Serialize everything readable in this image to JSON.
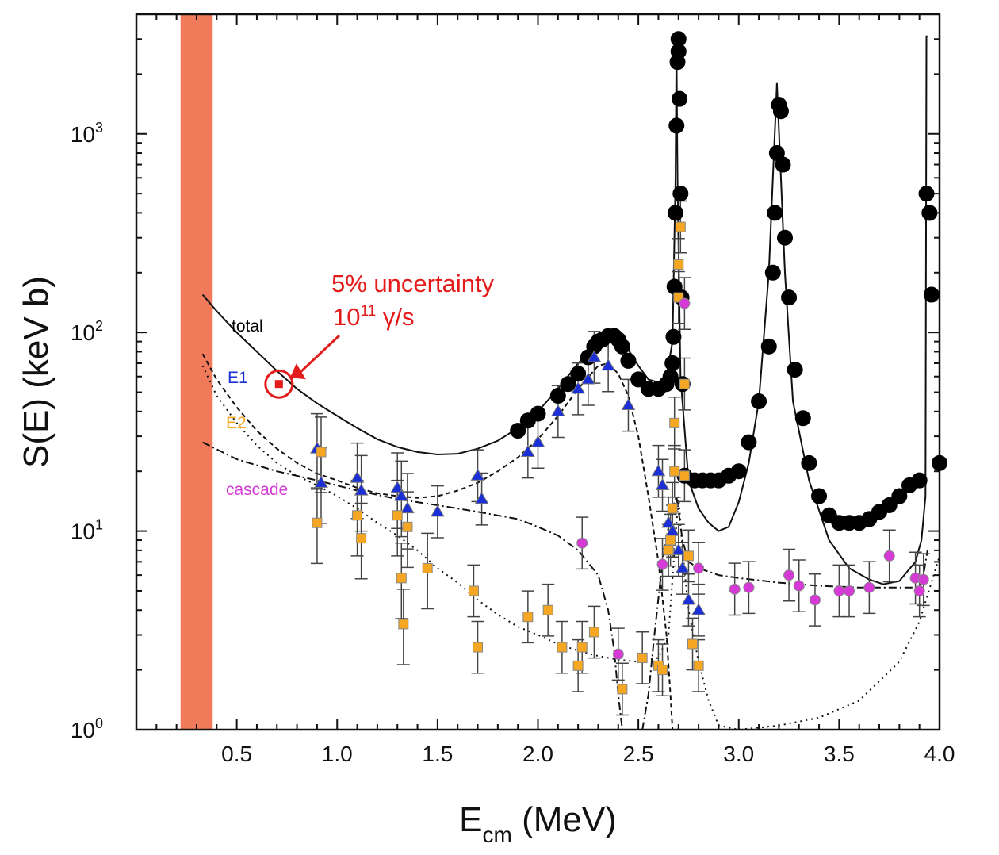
{
  "chart_data": {
    "type": "scatter",
    "title": "",
    "xlabel": "E",
    "xlabel_sub": "cm",
    "xlabel_unit": "(MeV)",
    "ylabel": "S(E) (keV b)",
    "x_range": [
      0.0,
      4.0
    ],
    "y_range_log": [
      1,
      4000
    ],
    "x_ticks": [
      "0.5",
      "1.0",
      "1.5",
      "2.0",
      "2.5",
      "3.0",
      "3.5",
      "4.0"
    ],
    "x_tick_values": [
      0.5,
      1.0,
      1.5,
      2.0,
      2.5,
      3.0,
      3.5,
      4.0
    ],
    "y_ticks": [
      {
        "base": "10",
        "exp": "0",
        "value": 1
      },
      {
        "base": "10",
        "exp": "1",
        "value": 10
      },
      {
        "base": "10",
        "exp": "2",
        "value": 100
      },
      {
        "base": "10",
        "exp": "3",
        "value": 1000
      }
    ],
    "shaded_band": {
      "x_from": 0.22,
      "x_to": 0.38,
      "color": "#f07a5a"
    },
    "colors": {
      "total": "#000000",
      "E1": "#1a2fd6",
      "E2": "#f5a623",
      "cascade": "#d63ad6",
      "annotation": "#e31b1b"
    },
    "curve_labels": [
      {
        "name": "total",
        "text": "total",
        "color": "#000000"
      },
      {
        "name": "E1",
        "text": "E1",
        "color": "#1a2fd6"
      },
      {
        "name": "E2",
        "text": "E2",
        "color": "#f5a623"
      },
      {
        "name": "cascade",
        "text": "cascade",
        "color": "#d63ad6"
      }
    ],
    "annotation": {
      "line1": "5% uncertainty",
      "line2_base": "10",
      "line2_exp": "11",
      "line2_rest": " γ/s",
      "point": {
        "x": 0.71,
        "y": 55
      }
    },
    "curves": {
      "total": [
        [
          0.33,
          155
        ],
        [
          0.4,
          128
        ],
        [
          0.5,
          100
        ],
        [
          0.6,
          80
        ],
        [
          0.7,
          64
        ],
        [
          0.8,
          52
        ],
        [
          0.9,
          44
        ],
        [
          1.0,
          38
        ],
        [
          1.1,
          33
        ],
        [
          1.2,
          29
        ],
        [
          1.3,
          26.5
        ],
        [
          1.4,
          25
        ],
        [
          1.5,
          24.3
        ],
        [
          1.6,
          24.5
        ],
        [
          1.7,
          26
        ],
        [
          1.8,
          28.5
        ],
        [
          1.9,
          33
        ],
        [
          2.0,
          40
        ],
        [
          2.1,
          52
        ],
        [
          2.2,
          70
        ],
        [
          2.3,
          90
        ],
        [
          2.35,
          95
        ],
        [
          2.4,
          92
        ],
        [
          2.45,
          82
        ],
        [
          2.5,
          68
        ],
        [
          2.55,
          58
        ],
        [
          2.6,
          56
        ],
        [
          2.64,
          60
        ],
        [
          2.67,
          90
        ],
        [
          2.685,
          600
        ],
        [
          2.69,
          2900
        ],
        [
          2.695,
          600
        ],
        [
          2.71,
          60
        ],
        [
          2.75,
          18
        ],
        [
          2.8,
          13
        ],
        [
          2.85,
          11
        ],
        [
          2.9,
          10
        ],
        [
          2.95,
          10.5
        ],
        [
          3.0,
          14
        ],
        [
          3.05,
          22
        ],
        [
          3.1,
          45
        ],
        [
          3.15,
          200
        ],
        [
          3.19,
          1800
        ],
        [
          3.23,
          200
        ],
        [
          3.27,
          45
        ],
        [
          3.35,
          18
        ],
        [
          3.45,
          9
        ],
        [
          3.55,
          6.5
        ],
        [
          3.65,
          5.7
        ],
        [
          3.72,
          5.4
        ],
        [
          3.8,
          5.6
        ],
        [
          3.88,
          7
        ],
        [
          3.91,
          9
        ],
        [
          3.93,
          15
        ],
        [
          3.935,
          3100
        ],
        [
          3.94,
          3100
        ]
      ],
      "E1": [
        [
          0.33,
          78
        ],
        [
          0.4,
          58
        ],
        [
          0.5,
          42
        ],
        [
          0.6,
          32
        ],
        [
          0.7,
          26
        ],
        [
          0.8,
          22
        ],
        [
          0.9,
          19.5
        ],
        [
          1.0,
          18
        ],
        [
          1.1,
          16.5
        ],
        [
          1.2,
          15.5
        ],
        [
          1.3,
          15
        ],
        [
          1.4,
          14.7
        ],
        [
          1.5,
          15
        ],
        [
          1.6,
          16
        ],
        [
          1.7,
          17.5
        ],
        [
          1.8,
          20
        ],
        [
          1.9,
          23.5
        ],
        [
          2.0,
          29
        ],
        [
          2.1,
          38
        ],
        [
          2.2,
          52
        ],
        [
          2.3,
          68
        ],
        [
          2.35,
          70
        ],
        [
          2.4,
          62
        ],
        [
          2.45,
          48
        ],
        [
          2.5,
          30
        ],
        [
          2.55,
          15
        ],
        [
          2.6,
          7
        ],
        [
          2.64,
          3
        ],
        [
          2.66,
          1.5
        ],
        [
          2.67,
          1.0
        ]
      ],
      "E2": [
        [
          0.33,
          68
        ],
        [
          0.4,
          48
        ],
        [
          0.5,
          35
        ],
        [
          0.6,
          27
        ],
        [
          0.7,
          22
        ],
        [
          0.8,
          19
        ],
        [
          0.9,
          17
        ],
        [
          1.0,
          15
        ],
        [
          1.1,
          13
        ],
        [
          1.2,
          11
        ],
        [
          1.3,
          9.5
        ],
        [
          1.4,
          8
        ],
        [
          1.5,
          6.5
        ],
        [
          1.6,
          5.5
        ],
        [
          1.7,
          4.5
        ],
        [
          1.8,
          3.8
        ],
        [
          1.9,
          3.3
        ],
        [
          2.0,
          3.0
        ],
        [
          2.1,
          2.7
        ],
        [
          2.2,
          2.5
        ],
        [
          2.3,
          2.35
        ],
        [
          2.4,
          2.25
        ],
        [
          2.5,
          2.2
        ],
        [
          2.6,
          2.3
        ],
        [
          2.65,
          3
        ],
        [
          2.68,
          8
        ],
        [
          2.7,
          15
        ],
        [
          2.72,
          8
        ],
        [
          2.75,
          4
        ],
        [
          2.8,
          2.2
        ],
        [
          2.85,
          1.4
        ],
        [
          2.9,
          1.05
        ],
        [
          3.0,
          1.0
        ],
        [
          3.2,
          1.05
        ],
        [
          3.4,
          1.15
        ],
        [
          3.6,
          1.4
        ],
        [
          3.8,
          2.2
        ],
        [
          3.9,
          3.5
        ],
        [
          4.0,
          7.5
        ]
      ],
      "cascade": [
        [
          0.33,
          28
        ],
        [
          0.5,
          23
        ],
        [
          0.7,
          20
        ],
        [
          0.9,
          18
        ],
        [
          1.1,
          16
        ],
        [
          1.3,
          14.5
        ],
        [
          1.5,
          13.5
        ],
        [
          1.7,
          12.5
        ],
        [
          1.9,
          11.5
        ],
        [
          2.0,
          10.5
        ],
        [
          2.1,
          9.5
        ],
        [
          2.2,
          8
        ],
        [
          2.3,
          6
        ],
        [
          2.35,
          4
        ],
        [
          2.38,
          2.5
        ],
        [
          2.4,
          1.5
        ],
        [
          2.42,
          1.0
        ],
        [
          2.52,
          1.0
        ],
        [
          2.55,
          1.5
        ],
        [
          2.58,
          3
        ],
        [
          2.62,
          7
        ],
        [
          2.66,
          12
        ],
        [
          2.69,
          15
        ],
        [
          2.72,
          9
        ],
        [
          2.75,
          7
        ],
        [
          2.8,
          6.5
        ],
        [
          2.9,
          6
        ],
        [
          3.0,
          5.8
        ],
        [
          3.2,
          5.5
        ],
        [
          3.4,
          5.3
        ],
        [
          3.6,
          5.2
        ],
        [
          3.8,
          5.2
        ],
        [
          3.9,
          5.2
        ],
        [
          3.92,
          6
        ],
        [
          3.94,
          8
        ]
      ]
    },
    "series": [
      {
        "name": "total",
        "marker": "circle",
        "color": "#000000",
        "points": [
          [
            1.9,
            32
          ],
          [
            1.95,
            36
          ],
          [
            2.0,
            39
          ],
          [
            2.1,
            48
          ],
          [
            2.15,
            55
          ],
          [
            2.2,
            62
          ],
          [
            2.25,
            75
          ],
          [
            2.28,
            85
          ],
          [
            2.3,
            90
          ],
          [
            2.32,
            92
          ],
          [
            2.35,
            96
          ],
          [
            2.38,
            96
          ],
          [
            2.4,
            92
          ],
          [
            2.42,
            85
          ],
          [
            2.45,
            72
          ],
          [
            2.5,
            58
          ],
          [
            2.55,
            52
          ],
          [
            2.6,
            52
          ],
          [
            2.64,
            55
          ],
          [
            2.66,
            60
          ],
          [
            2.67,
            70
          ],
          [
            2.675,
            95
          ],
          [
            2.68,
            170
          ],
          [
            2.685,
            400
          ],
          [
            2.69,
            1100
          ],
          [
            2.695,
            2300
          ],
          [
            2.7,
            3000
          ],
          [
            2.7,
            2600
          ],
          [
            2.705,
            1500
          ],
          [
            2.71,
            500
          ],
          [
            2.715,
            150
          ],
          [
            2.72,
            55
          ],
          [
            2.73,
            19
          ],
          [
            2.78,
            18
          ],
          [
            2.82,
            18
          ],
          [
            2.86,
            18
          ],
          [
            2.9,
            18
          ],
          [
            2.95,
            19
          ],
          [
            3.0,
            20
          ],
          [
            3.05,
            28
          ],
          [
            3.1,
            45
          ],
          [
            3.15,
            85
          ],
          [
            3.17,
            200
          ],
          [
            3.18,
            400
          ],
          [
            3.19,
            800
          ],
          [
            3.2,
            1400
          ],
          [
            3.21,
            1300
          ],
          [
            3.22,
            700
          ],
          [
            3.23,
            300
          ],
          [
            3.25,
            150
          ],
          [
            3.28,
            65
          ],
          [
            3.32,
            37
          ],
          [
            3.35,
            22
          ],
          [
            3.4,
            15
          ],
          [
            3.45,
            12
          ],
          [
            3.5,
            11
          ],
          [
            3.55,
            11
          ],
          [
            3.6,
            11
          ],
          [
            3.65,
            11.5
          ],
          [
            3.7,
            12.5
          ],
          [
            3.75,
            13.5
          ],
          [
            3.8,
            15
          ],
          [
            3.85,
            17
          ],
          [
            3.9,
            18
          ],
          [
            3.935,
            500
          ],
          [
            3.95,
            400
          ],
          [
            3.96,
            155
          ],
          [
            4.0,
            22
          ]
        ]
      },
      {
        "name": "E1",
        "marker": "triangle",
        "color": "#1a2fd6",
        "points": [
          [
            0.9,
            26
          ],
          [
            0.92,
            17.5
          ],
          [
            1.1,
            18.5
          ],
          [
            1.12,
            16
          ],
          [
            1.3,
            16.5
          ],
          [
            1.32,
            15
          ],
          [
            1.35,
            13
          ],
          [
            1.5,
            12.5
          ],
          [
            1.7,
            19
          ],
          [
            1.72,
            14.5
          ],
          [
            1.95,
            25
          ],
          [
            2.0,
            28
          ],
          [
            2.1,
            40
          ],
          [
            2.2,
            52
          ],
          [
            2.25,
            58
          ],
          [
            2.28,
            75
          ],
          [
            2.35,
            68
          ],
          [
            2.45,
            43
          ],
          [
            2.6,
            20
          ],
          [
            2.62,
            17
          ],
          [
            2.65,
            11
          ],
          [
            2.67,
            10
          ],
          [
            2.7,
            8
          ],
          [
            2.72,
            6.5
          ],
          [
            2.75,
            4.5
          ],
          [
            2.8,
            4
          ]
        ]
      },
      {
        "name": "E2",
        "marker": "square",
        "color": "#f5a623",
        "points": [
          [
            0.9,
            11
          ],
          [
            0.92,
            25
          ],
          [
            1.1,
            12
          ],
          [
            1.12,
            9.2
          ],
          [
            1.3,
            12
          ],
          [
            1.32,
            5.8
          ],
          [
            1.33,
            3.4
          ],
          [
            1.35,
            10.5
          ],
          [
            1.45,
            6.5
          ],
          [
            1.68,
            5
          ],
          [
            1.7,
            2.6
          ],
          [
            1.95,
            3.7
          ],
          [
            2.05,
            4
          ],
          [
            2.12,
            2.6
          ],
          [
            2.2,
            2.1
          ],
          [
            2.22,
            2.6
          ],
          [
            2.28,
            3.1
          ],
          [
            2.42,
            1.6
          ],
          [
            2.52,
            2.3
          ],
          [
            2.6,
            2.1
          ],
          [
            2.62,
            2
          ],
          [
            2.65,
            8
          ],
          [
            2.66,
            9
          ],
          [
            2.67,
            13
          ],
          [
            2.68,
            20
          ],
          [
            2.68,
            35
          ],
          [
            2.7,
            150
          ],
          [
            2.7,
            220
          ],
          [
            2.71,
            340
          ],
          [
            2.73,
            55
          ],
          [
            2.73,
            19
          ],
          [
            2.75,
            7.5
          ],
          [
            2.77,
            2.7
          ],
          [
            2.8,
            2.1
          ]
        ]
      },
      {
        "name": "cascade",
        "marker": "circle",
        "color": "#d63ad6",
        "points": [
          [
            2.22,
            8.7
          ],
          [
            2.4,
            2.4
          ],
          [
            2.62,
            6.8
          ],
          [
            2.8,
            6.5
          ],
          [
            2.98,
            5.1
          ],
          [
            3.05,
            5.2
          ],
          [
            3.25,
            6
          ],
          [
            3.3,
            5.3
          ],
          [
            3.38,
            4.5
          ],
          [
            3.5,
            5
          ],
          [
            3.55,
            5
          ],
          [
            3.65,
            5.2
          ],
          [
            3.75,
            7.5
          ],
          [
            3.88,
            5.8
          ],
          [
            3.9,
            5
          ],
          [
            3.92,
            5.7
          ],
          [
            2.73,
            140
          ]
        ]
      }
    ]
  }
}
